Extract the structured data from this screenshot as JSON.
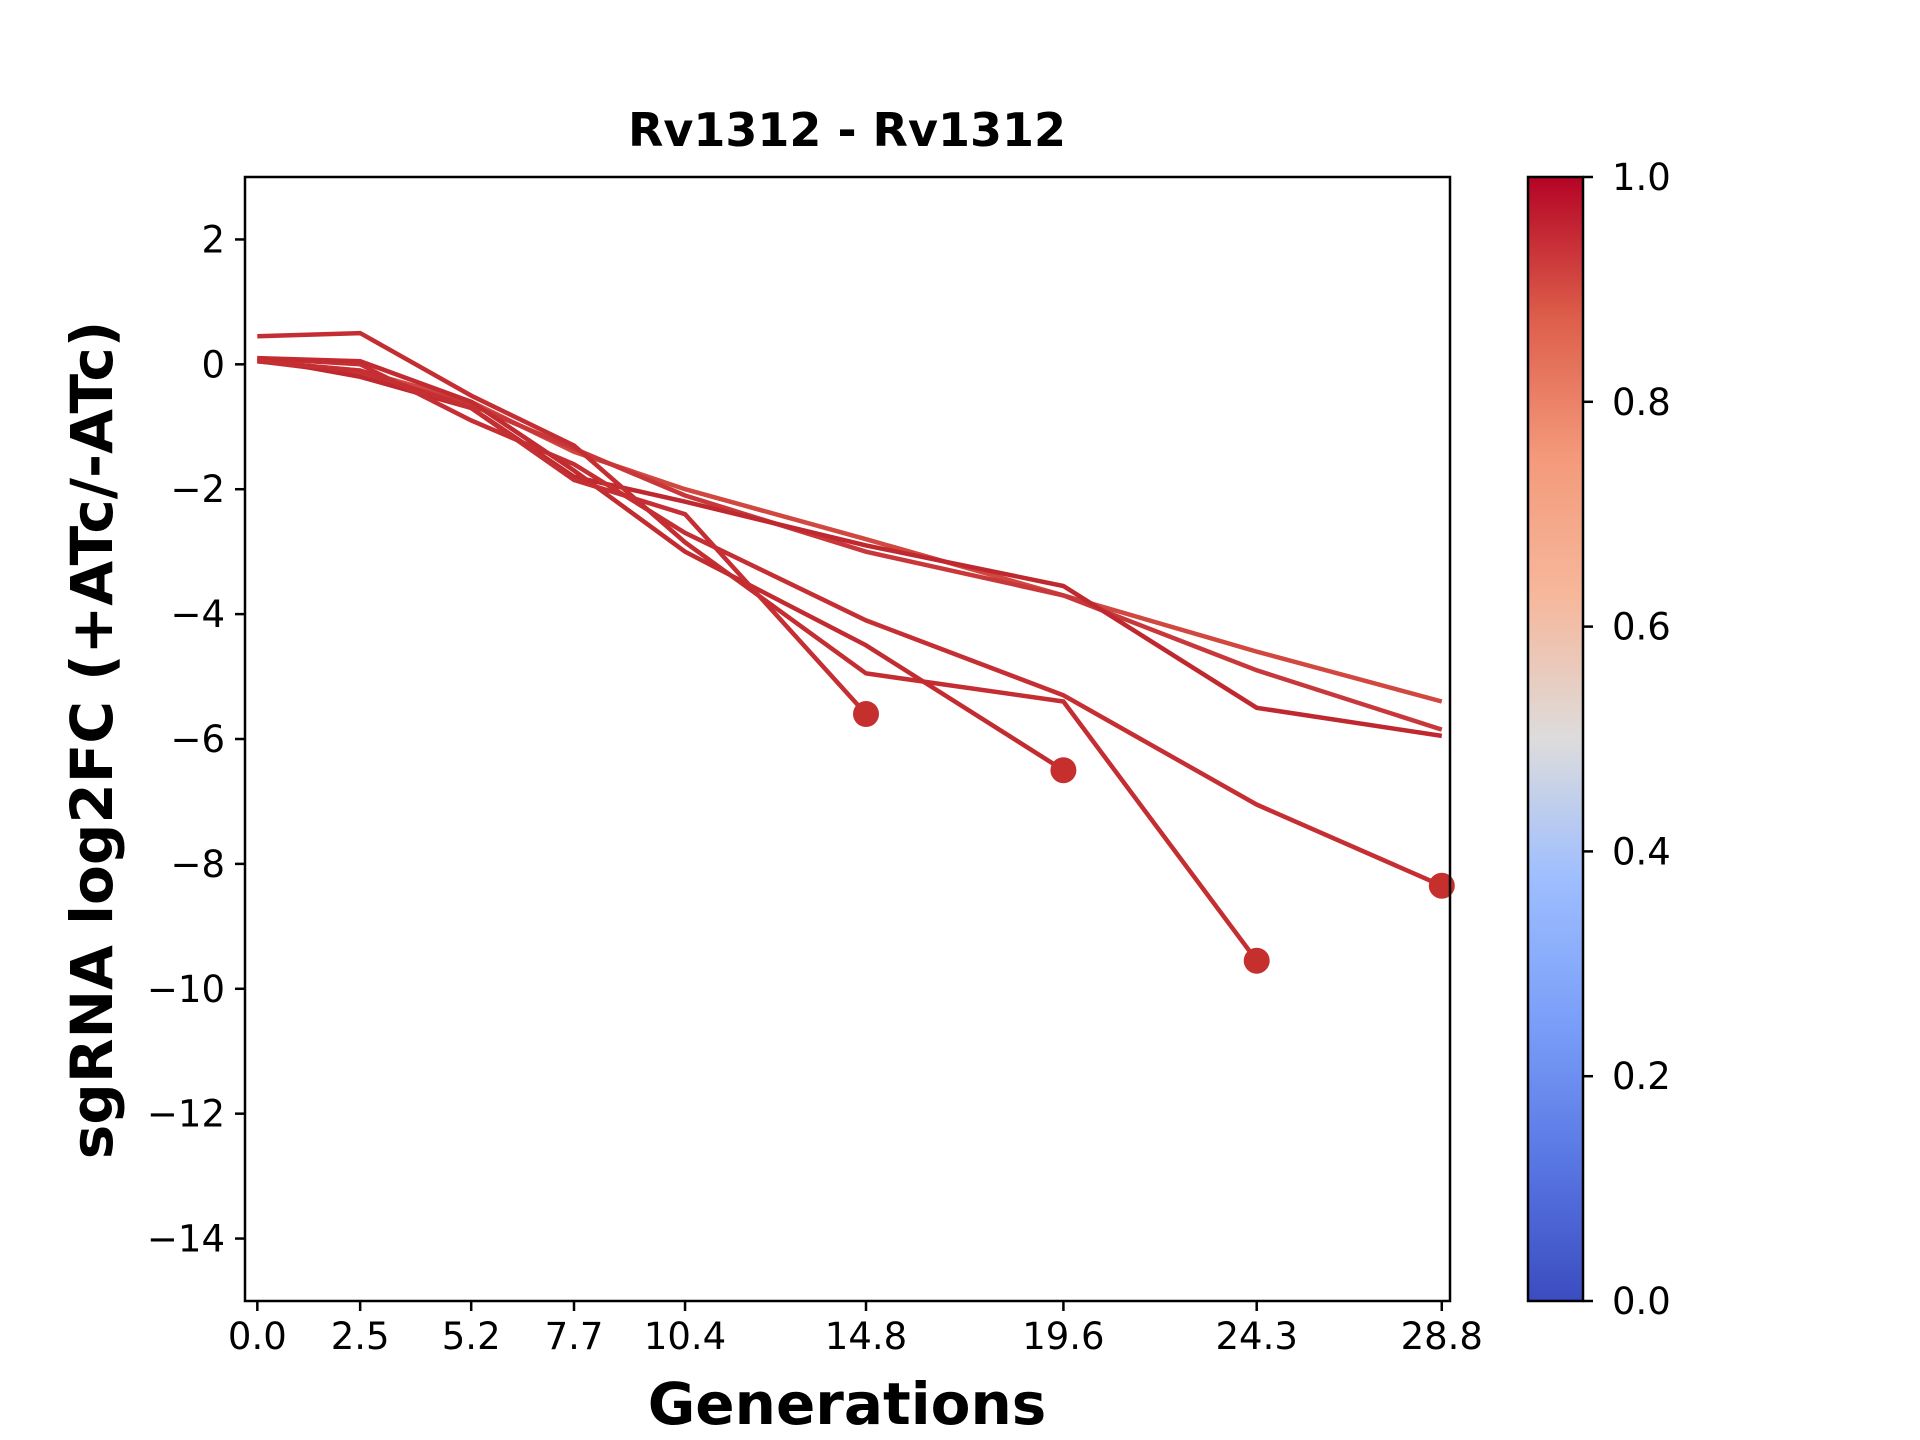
{
  "chart_data": {
    "type": "line",
    "title": "Rv1312 - Rv1312",
    "xlabel": "Generations",
    "ylabel": "sgRNA log2FC (+ATc/-ATc)",
    "xlim": [
      -0.3,
      29.0
    ],
    "ylim": [
      -15,
      3
    ],
    "xticks": [
      0.0,
      2.5,
      5.2,
      7.7,
      10.4,
      14.8,
      19.6,
      24.3,
      28.8
    ],
    "xtick_labels": [
      "0.0",
      "2.5",
      "5.2",
      "7.7",
      "10.4",
      "14.8",
      "19.6",
      "24.3",
      "28.8"
    ],
    "yticks": [
      2,
      0,
      -2,
      -4,
      -6,
      -8,
      -10,
      -12,
      -14
    ],
    "ytick_labels": [
      "2",
      "0",
      "−2",
      "−4",
      "−6",
      "−8",
      "−10",
      "−12",
      "−14"
    ],
    "colorbar": {
      "colormap": "coolwarm",
      "range": [
        0.0,
        1.0
      ],
      "ticks": [
        0.0,
        0.2,
        0.4,
        0.6,
        0.8,
        1.0
      ],
      "tick_labels": [
        "0.0",
        "0.2",
        "0.4",
        "0.6",
        "0.8",
        "1.0"
      ]
    },
    "series": [
      {
        "color": "#d0483f",
        "x": [
          0.0,
          2.5,
          5.2,
          7.7,
          10.4,
          14.8,
          19.6,
          24.3,
          28.8
        ],
        "y": [
          0.05,
          -0.1,
          -0.6,
          -1.4,
          -2.0,
          -2.8,
          -3.7,
          -4.6,
          -5.4
        ],
        "end_marker": false
      },
      {
        "color": "#c8373a",
        "x": [
          0.0,
          2.5,
          5.2,
          7.7,
          10.4,
          14.8,
          19.6,
          24.3,
          28.8
        ],
        "y": [
          0.05,
          -0.15,
          -0.65,
          -1.35,
          -2.1,
          -3.0,
          -3.7,
          -4.9,
          -5.85
        ],
        "end_marker": false
      },
      {
        "color": "#c0282f",
        "x": [
          0.0,
          2.5,
          5.2,
          7.7,
          10.4,
          14.8,
          19.6,
          24.3,
          28.8
        ],
        "y": [
          0.1,
          -0.2,
          -0.7,
          -1.8,
          -2.2,
          -2.9,
          -3.55,
          -5.5,
          -5.95
        ],
        "end_marker": false
      },
      {
        "color": "#c52f33",
        "x": [
          0.0,
          2.5,
          5.2,
          7.7,
          10.4,
          14.8,
          19.6,
          24.3,
          28.8
        ],
        "y": [
          0.1,
          0.0,
          -0.9,
          -1.6,
          -2.7,
          -4.1,
          -5.3,
          -7.05,
          -8.35
        ],
        "end_marker": true
      },
      {
        "color": "#c42e32",
        "x": [
          0.0,
          2.5,
          5.2,
          7.7,
          10.4,
          14.8,
          19.6,
          24.3
        ],
        "y": [
          0.45,
          0.5,
          -0.5,
          -1.3,
          -2.85,
          -4.95,
          -5.4,
          -9.55
        ],
        "end_marker": true
      },
      {
        "color": "#c22c30",
        "x": [
          0.0,
          2.5,
          5.2,
          7.7,
          10.4,
          14.8,
          19.6
        ],
        "y": [
          0.1,
          0.05,
          -0.6,
          -1.7,
          -3.0,
          -4.5,
          -6.5
        ],
        "end_marker": true
      },
      {
        "color": "#c52f33",
        "x": [
          0.0,
          2.5,
          5.2,
          7.7,
          10.4,
          14.8
        ],
        "y": [
          0.05,
          -0.1,
          -0.7,
          -1.85,
          -2.4,
          -5.6
        ],
        "end_marker": true
      }
    ],
    "grid": false,
    "legend": "none"
  }
}
